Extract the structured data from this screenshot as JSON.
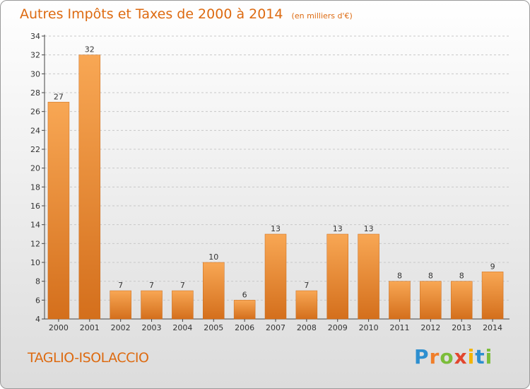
{
  "title": {
    "main": "Autres Impôts et Taxes de 2000 à 2014",
    "unit": "(en milliers d'€)"
  },
  "commune": "TAGLIO-ISOLACCIO",
  "brand": {
    "letters": [
      "P",
      "r",
      "o",
      "x",
      "i",
      "t",
      "i"
    ]
  },
  "colors": {
    "accent": "#dd6a10",
    "bar_light": "#f8a754",
    "bar_dark": "#d46f1c",
    "axis": "#444444",
    "grid": "#c8c8c8"
  },
  "chart_data": {
    "type": "bar",
    "title": "Autres Impôts et Taxes de 2000 à 2014",
    "xlabel": "",
    "ylabel": "",
    "categories": [
      "2000",
      "2001",
      "2002",
      "2003",
      "2004",
      "2005",
      "2006",
      "2007",
      "2008",
      "2009",
      "2010",
      "2011",
      "2012",
      "2013",
      "2014"
    ],
    "values": [
      27,
      32,
      7,
      7,
      7,
      10,
      6,
      13,
      7,
      13,
      13,
      8,
      8,
      8,
      9
    ],
    "ylim": [
      4,
      34
    ],
    "yticks": [
      4,
      6,
      8,
      10,
      12,
      14,
      16,
      18,
      20,
      22,
      24,
      26,
      28,
      30,
      32,
      34
    ],
    "grid": "horizontal dashed",
    "data_labels": true
  }
}
